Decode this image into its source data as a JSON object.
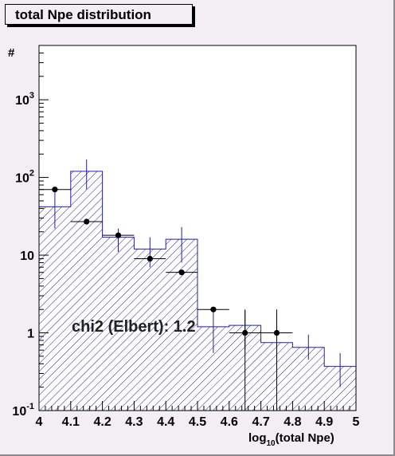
{
  "chart_data": {
    "type": "bar",
    "title": "total Npe distribution",
    "ylabel": "#",
    "xlabel_main": "log",
    "xlabel_sub": "10",
    "xlabel_rest": "(total Npe)",
    "xlim": [
      4,
      5
    ],
    "ylim": [
      0.1,
      5000
    ],
    "log_y": true,
    "x_ticks": [
      "4",
      "4.1",
      "4.2",
      "4.3",
      "4.4",
      "4.5",
      "4.6",
      "4.7",
      "4.8",
      "4.9",
      "5"
    ],
    "y_ticks": [
      {
        "value": 0.1,
        "base": "10",
        "exp": "-1"
      },
      {
        "value": 1,
        "base": "1",
        "exp": ""
      },
      {
        "value": 10,
        "base": "10",
        "exp": ""
      },
      {
        "value": 100,
        "base": "10",
        "exp": "2"
      },
      {
        "value": 1000,
        "base": "10",
        "exp": "3"
      }
    ],
    "histogram": {
      "bin_edges": [
        4.0,
        4.1,
        4.2,
        4.3,
        4.4,
        4.5,
        4.6,
        4.7,
        4.8,
        4.9,
        5.0
      ],
      "values": [
        42,
        120,
        17,
        12,
        16,
        1.2,
        1.25,
        0.75,
        0.65,
        0.37
      ],
      "error_up": [
        68,
        170,
        22,
        17,
        23,
        1.9,
        1.9,
        1.3,
        0.95,
        0.55
      ],
      "error_down": [
        22,
        70,
        11,
        7,
        8,
        0.55,
        0.6,
        0.1,
        0.45,
        0.2
      ],
      "color": "#2020a0"
    },
    "points": {
      "x": [
        4.05,
        4.15,
        4.25,
        4.35,
        4.45,
        4.55,
        4.65,
        4.75
      ],
      "y": [
        70,
        27,
        18,
        9,
        6,
        2,
        1,
        1
      ],
      "error_up": [
        null,
        null,
        null,
        null,
        null,
        null,
        2,
        2
      ],
      "error_down": [
        null,
        null,
        null,
        null,
        null,
        null,
        0.1,
        0.1
      ],
      "color": "#000000"
    },
    "annotation": "chi2 (Elbert): 1.2"
  }
}
